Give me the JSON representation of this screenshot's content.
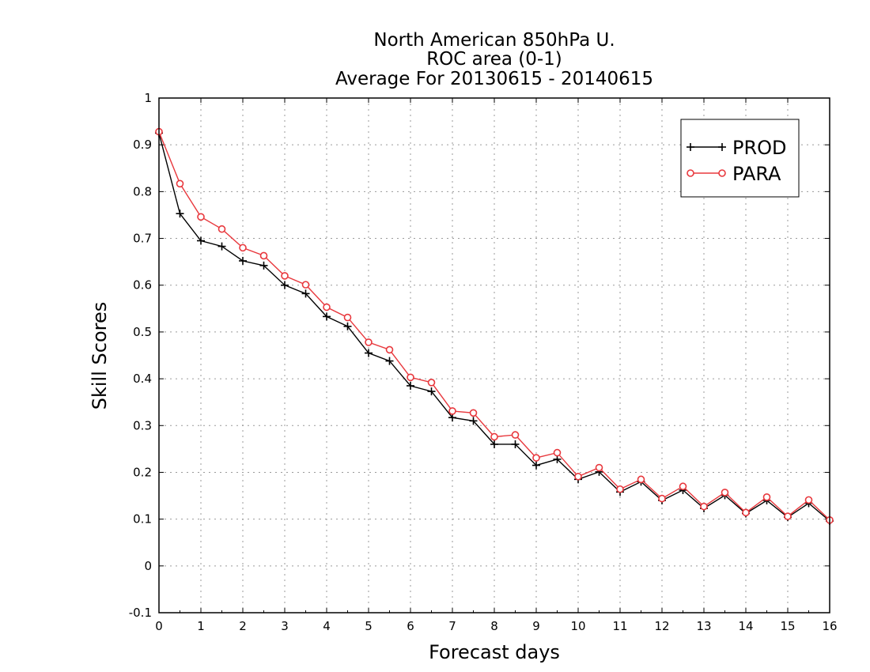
{
  "chart_data": {
    "type": "line",
    "title_lines": [
      "North American 850hPa U.",
      "ROC area (0-1)",
      "Average For 20130615 - 20140615"
    ],
    "xlabel": "Forecast days",
    "ylabel": "Skill Scores",
    "xlim": [
      0,
      16
    ],
    "ylim": [
      -0.1,
      1
    ],
    "x_ticks": [
      "0",
      "1",
      "2",
      "3",
      "4",
      "5",
      "6",
      "7",
      "8",
      "9",
      "10",
      "11",
      "12",
      "13",
      "14",
      "15",
      "16"
    ],
    "y_ticks": [
      "-0.1",
      "0",
      "0.1",
      "0.2",
      "0.3",
      "0.4",
      "0.5",
      "0.6",
      "0.7",
      "0.8",
      "0.9",
      "1"
    ],
    "grid": true,
    "legend_position": "top-right",
    "x": [
      0,
      0.5,
      1,
      1.5,
      2,
      2.5,
      3,
      3.5,
      4,
      4.5,
      5,
      5.5,
      6,
      6.5,
      7,
      7.5,
      8,
      8.5,
      9,
      9.5,
      10,
      10.5,
      11,
      11.5,
      12,
      12.5,
      13,
      13.5,
      14,
      14.5,
      15,
      15.5,
      16
    ],
    "series": [
      {
        "name": "PROD",
        "color": "#000000",
        "marker": "plus",
        "values": [
          0.925,
          0.753,
          0.695,
          0.683,
          0.652,
          0.642,
          0.6,
          0.582,
          0.533,
          0.512,
          0.455,
          0.438,
          0.385,
          0.373,
          0.317,
          0.31,
          0.26,
          0.26,
          0.215,
          0.228,
          0.185,
          0.201,
          0.158,
          0.18,
          0.14,
          0.162,
          0.123,
          0.151,
          0.112,
          0.14,
          0.104,
          0.134,
          0.096
        ]
      },
      {
        "name": "PARA",
        "color": "#e8383d",
        "marker": "circle",
        "values": [
          0.928,
          0.817,
          0.746,
          0.72,
          0.68,
          0.663,
          0.62,
          0.601,
          0.553,
          0.531,
          0.478,
          0.462,
          0.403,
          0.392,
          0.331,
          0.327,
          0.276,
          0.28,
          0.231,
          0.242,
          0.191,
          0.21,
          0.164,
          0.185,
          0.144,
          0.17,
          0.127,
          0.157,
          0.114,
          0.147,
          0.106,
          0.141,
          0.098
        ]
      }
    ]
  }
}
